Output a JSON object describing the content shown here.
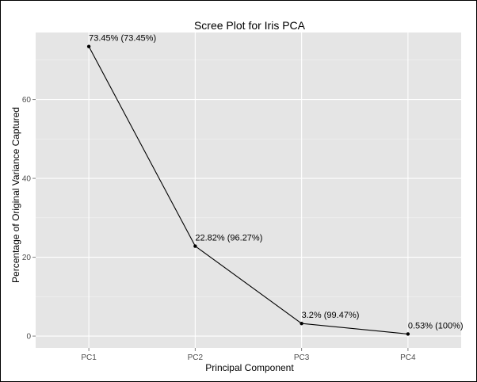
{
  "chart_data": {
    "type": "line",
    "title": "Scree Plot for Iris PCA",
    "xlabel": "Principal Component",
    "ylabel": "Percentage of Original Variance Captured",
    "categories": [
      "PC1",
      "PC2",
      "PC3",
      "PC4"
    ],
    "series": [
      {
        "values": [
          73.45,
          22.82,
          3.2,
          0.53
        ],
        "labels": [
          "73.45% (73.45%)",
          "22.82% (96.27%)",
          "3.2% (99.47%)",
          "0.53% (100%)"
        ]
      }
    ],
    "yticks": [
      0,
      20,
      40,
      60
    ],
    "ylim": [
      -3,
      77
    ],
    "grid": true,
    "legend": "none",
    "colors": {
      "panel": "#e5e5e5",
      "grid_major": "#ffffff",
      "grid_minor": "#f2f2f2",
      "line": "#000000"
    }
  }
}
